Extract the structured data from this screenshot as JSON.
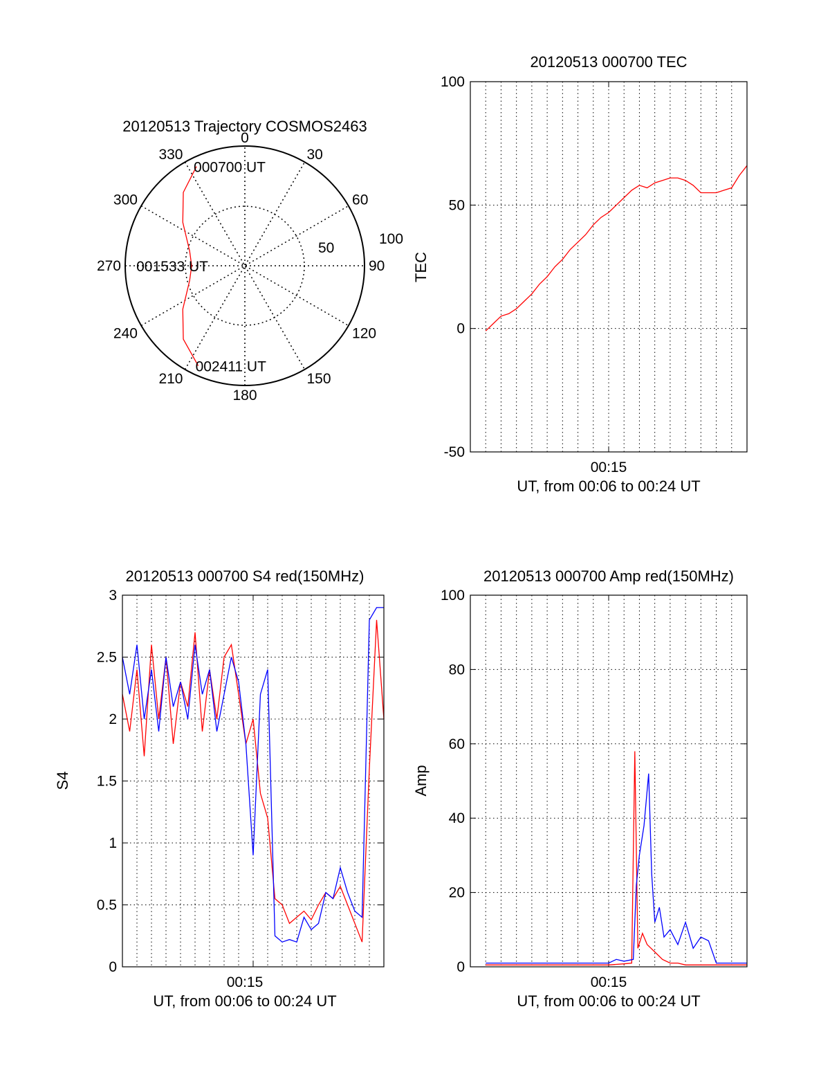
{
  "colors": {
    "red": "#ff0000",
    "blue": "#0000ff",
    "axis": "#000000"
  },
  "chart_data": [
    {
      "id": "polar",
      "type": "polar-trajectory",
      "title": "20120513 Trajectory COSMOS2463",
      "azimuth_labels": [
        "0",
        "30",
        "60",
        "90",
        "120",
        "150",
        "180",
        "210",
        "240",
        "270",
        "300",
        "330"
      ],
      "elevation_ring_labels": [
        "50",
        "100"
      ],
      "trajectory": {
        "color": "red",
        "points": [
          {
            "az": 334,
            "el": 7
          },
          {
            "az": 320,
            "el": 18
          },
          {
            "az": 305,
            "el": 33
          },
          {
            "az": 285,
            "el": 47
          },
          {
            "az": 270,
            "el": 50
          },
          {
            "az": 255,
            "el": 47
          },
          {
            "az": 235,
            "el": 33
          },
          {
            "az": 220,
            "el": 18
          },
          {
            "az": 205,
            "el": 7
          }
        ],
        "labels": [
          {
            "text": "000700 UT",
            "az": 334,
            "el": 7
          },
          {
            "text": "001533 UT",
            "az": 270,
            "el": 50
          },
          {
            "text": "002411 UT",
            "az": 205,
            "el": 7
          }
        ]
      }
    },
    {
      "id": "tec",
      "type": "line",
      "title": "20120513 000700 TEC",
      "xlabel": "UT, from 00:06 to 00:24 UT",
      "ylabel": "TEC",
      "xlim": [
        6,
        24
      ],
      "ylim": [
        -50,
        100
      ],
      "yticks": [
        "100",
        "50",
        "0",
        "-50"
      ],
      "xtick_label": "00:15",
      "grid": true,
      "series": [
        {
          "color": "red",
          "x": [
            7.0,
            7.5,
            8.0,
            8.5,
            9.0,
            9.5,
            10.0,
            10.5,
            11.0,
            11.5,
            12.0,
            12.5,
            13.0,
            13.5,
            14.0,
            14.5,
            15.0,
            15.5,
            16.0,
            16.5,
            17.0,
            17.5,
            18.0,
            18.5,
            19.0,
            19.5,
            20.0,
            20.5,
            21.0,
            21.5,
            22.0,
            22.5,
            23.0,
            23.5,
            24.0
          ],
          "y": [
            -1,
            2,
            5,
            6,
            8,
            11,
            14,
            18,
            21,
            25,
            28,
            32,
            35,
            38,
            42,
            45,
            47,
            50,
            53,
            56,
            58,
            57,
            59,
            60,
            61,
            61,
            60,
            58,
            55,
            55,
            55,
            56,
            57,
            62,
            66
          ]
        }
      ]
    },
    {
      "id": "s4",
      "type": "line",
      "title": "20120513 000700 S4 red(150MHz)",
      "xlabel": "UT, from 00:06 to 00:24 UT",
      "ylabel": "S4",
      "xlim": [
        6,
        24
      ],
      "ylim": [
        0,
        3
      ],
      "yticks": [
        "3",
        "2.5",
        "2",
        "1.5",
        "1",
        "0.5",
        "0"
      ],
      "xtick_label": "00:15",
      "grid": true,
      "series": [
        {
          "color": "red",
          "x": [
            6.0,
            6.5,
            7.0,
            7.5,
            8.0,
            8.5,
            9.0,
            9.5,
            10.0,
            10.5,
            11.0,
            11.5,
            12.0,
            12.5,
            13.0,
            13.5,
            14.0,
            14.5,
            15.0,
            15.5,
            16.0,
            16.5,
            17.0,
            17.5,
            18.0,
            18.5,
            19.0,
            19.5,
            20.0,
            20.5,
            21.0,
            21.5,
            22.0,
            22.5,
            23.0,
            23.5,
            24.0
          ],
          "y": [
            2.2,
            1.9,
            2.4,
            1.7,
            2.6,
            2.0,
            2.5,
            1.8,
            2.3,
            2.1,
            2.7,
            1.9,
            2.4,
            2.0,
            2.5,
            2.6,
            2.2,
            1.8,
            2.0,
            1.4,
            1.2,
            0.55,
            0.5,
            0.35,
            0.4,
            0.45,
            0.38,
            0.5,
            0.6,
            0.55,
            0.65,
            0.5,
            0.35,
            0.2,
            1.6,
            2.8,
            2.0
          ]
        },
        {
          "color": "blue",
          "x": [
            6.0,
            6.5,
            7.0,
            7.5,
            8.0,
            8.5,
            9.0,
            9.5,
            10.0,
            10.5,
            11.0,
            11.5,
            12.0,
            12.5,
            13.0,
            13.5,
            14.0,
            14.5,
            15.0,
            15.5,
            16.0,
            16.5,
            17.0,
            17.5,
            18.0,
            18.5,
            19.0,
            19.5,
            20.0,
            20.5,
            21.0,
            21.5,
            22.0,
            22.5,
            23.0,
            23.5,
            24.0
          ],
          "y": [
            2.5,
            2.2,
            2.6,
            2.0,
            2.4,
            1.9,
            2.5,
            2.1,
            2.3,
            2.0,
            2.6,
            2.2,
            2.4,
            1.9,
            2.2,
            2.5,
            2.3,
            1.8,
            0.9,
            2.2,
            2.4,
            0.25,
            0.2,
            0.22,
            0.2,
            0.4,
            0.3,
            0.35,
            0.6,
            0.55,
            0.8,
            0.6,
            0.45,
            0.4,
            2.8,
            2.9,
            2.9
          ]
        }
      ]
    },
    {
      "id": "amp",
      "type": "line",
      "title": "20120513 000700 Amp red(150MHz)",
      "xlabel": "UT, from 00:06 to 00:24 UT",
      "ylabel": "Amp",
      "xlim": [
        6,
        24
      ],
      "ylim": [
        0,
        100
      ],
      "yticks": [
        "100",
        "80",
        "60",
        "40",
        "20",
        "0"
      ],
      "xtick_label": "00:15",
      "grid": true,
      "series": [
        {
          "color": "red",
          "x": [
            7.0,
            9.0,
            11.0,
            13.0,
            15.0,
            16.0,
            16.5,
            16.7,
            16.9,
            17.2,
            17.5,
            18.0,
            18.5,
            19.0,
            19.5,
            20.0,
            21.0,
            22.0,
            23.0,
            24.0
          ],
          "y": [
            0.5,
            0.5,
            0.5,
            0.5,
            0.5,
            0.8,
            1,
            58,
            5,
            9,
            6,
            4,
            2,
            1,
            1,
            0.5,
            0.5,
            0.5,
            0.5,
            0.5
          ]
        },
        {
          "color": "blue",
          "x": [
            7.0,
            9.0,
            11.0,
            13.0,
            15.0,
            15.5,
            16.0,
            16.6,
            16.8,
            17.0,
            17.3,
            17.6,
            17.8,
            18.0,
            18.3,
            18.6,
            19.0,
            19.5,
            20.0,
            20.5,
            21.0,
            21.5,
            22.0,
            22.5,
            23.0,
            24.0
          ],
          "y": [
            1,
            1,
            1,
            1,
            1,
            2,
            1.5,
            2,
            22,
            30,
            38,
            52,
            25,
            12,
            16,
            8,
            10,
            6,
            12,
            5,
            8,
            7,
            1,
            1,
            1,
            1
          ]
        }
      ]
    }
  ]
}
